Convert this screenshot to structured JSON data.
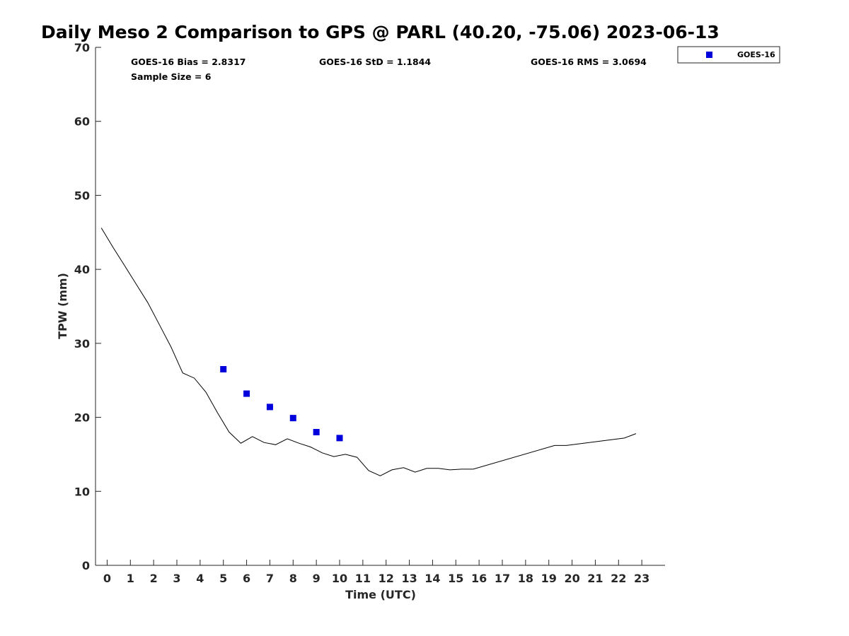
{
  "chart_data": {
    "type": "scatter",
    "title": "Daily Meso 2 Comparison to GPS @ PARL (40.20, -75.06) 2023-06-13",
    "xlabel": "Time (UTC)",
    "ylabel": "TPW (mm)",
    "xlim": [
      -0.5,
      24
    ],
    "ylim": [
      0,
      70
    ],
    "x_ticks": [
      0,
      1,
      2,
      3,
      4,
      5,
      6,
      7,
      8,
      9,
      10,
      11,
      12,
      13,
      14,
      15,
      16,
      17,
      18,
      19,
      20,
      21,
      22,
      23
    ],
    "x_tick_labels": [
      "0",
      "1",
      "2",
      "3",
      "4",
      "5",
      "6",
      "7",
      "8",
      "9",
      "10",
      "11",
      "12",
      "13",
      "14",
      "15",
      "16",
      "17",
      "18",
      "19",
      "20",
      "21",
      "22",
      "23"
    ],
    "y_ticks": [
      0,
      10,
      20,
      30,
      40,
      50,
      60,
      70
    ],
    "y_tick_labels": [
      "0",
      "10",
      "20",
      "30",
      "40",
      "50",
      "60",
      "70"
    ],
    "grid": false,
    "legend_position": "outside-top-right",
    "legend": [
      {
        "label": "GOES-16",
        "marker": "square",
        "color": "#0000dd"
      }
    ],
    "stats": {
      "bias": "GOES-16 Bias = 2.8317",
      "std": "GOES-16 StD = 1.1844",
      "rms": "GOES-16 RMS = 3.0694",
      "sample": "Sample Size = 6"
    },
    "series": [
      {
        "name": "GOES-16",
        "kind": "markers",
        "color": "#0000dd",
        "x": [
          5.0,
          6.0,
          7.0,
          8.0,
          9.0,
          10.0
        ],
        "y": [
          26.5,
          23.2,
          21.4,
          19.9,
          18.0,
          17.2
        ]
      },
      {
        "kind": "line",
        "color": "#000000",
        "x": [
          -0.25,
          0.25,
          0.75,
          1.25,
          1.75,
          2.25,
          2.75,
          3.25,
          3.75,
          4.25,
          4.75,
          5.25,
          5.75,
          6.25,
          6.75,
          7.25,
          7.75,
          8.25,
          8.75,
          9.25,
          9.75,
          10.25,
          10.75,
          11.25,
          11.75,
          12.25,
          12.75,
          13.25,
          13.75,
          14.25,
          14.75,
          15.25,
          15.75,
          19.25,
          19.75,
          22.25,
          22.75
        ],
        "y": [
          45.6,
          43.0,
          40.5,
          38.0,
          35.5,
          32.5,
          29.5,
          26.0,
          25.3,
          23.4,
          20.6,
          18.0,
          16.5,
          17.4,
          16.6,
          16.3,
          17.1,
          16.5,
          16.0,
          15.2,
          14.7,
          15.0,
          14.6,
          12.8,
          12.1,
          12.9,
          13.2,
          12.6,
          13.1,
          13.1,
          12.9,
          13.0,
          13.0,
          16.2,
          16.2,
          17.2,
          17.8
        ]
      }
    ]
  }
}
